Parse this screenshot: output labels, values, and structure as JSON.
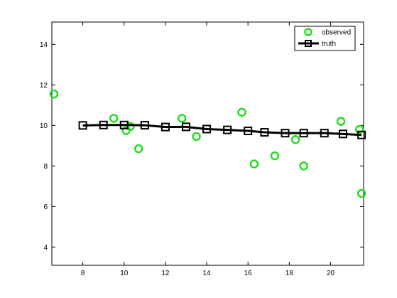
{
  "chart_data": {
    "type": "line",
    "title": "",
    "xlabel": "",
    "ylabel": "",
    "xlim": [
      6.5,
      21.6
    ],
    "ylim": [
      3.1,
      15.1
    ],
    "x_ticks": [
      8,
      10,
      12,
      14,
      16,
      18,
      20
    ],
    "y_ticks": [
      4,
      6,
      8,
      10,
      12,
      14
    ],
    "grid": false,
    "legend_placement": "top-right",
    "series": [
      {
        "name": "observed",
        "style": "markers",
        "marker": "circle",
        "color": "#22dd22",
        "points": [
          [
            6.6,
            11.55
          ],
          [
            9.5,
            10.35
          ],
          [
            10.1,
            9.75
          ],
          [
            10.3,
            9.95
          ],
          [
            10.7,
            8.85
          ],
          [
            12.8,
            10.35
          ],
          [
            13.5,
            9.45
          ],
          [
            15.7,
            10.65
          ],
          [
            16.3,
            8.1
          ],
          [
            17.3,
            8.5
          ],
          [
            18.3,
            9.3
          ],
          [
            18.7,
            8.0
          ],
          [
            20.5,
            10.2
          ],
          [
            21.4,
            9.8
          ],
          [
            21.5,
            6.65
          ]
        ]
      },
      {
        "name": "truth",
        "style": "line-markers",
        "marker": "square",
        "color": "#000000",
        "points": [
          [
            8,
            10.0
          ],
          [
            9,
            10.02
          ],
          [
            10,
            10.02
          ],
          [
            11,
            10.01
          ],
          [
            12,
            9.92
          ],
          [
            13,
            9.93
          ],
          [
            14,
            9.82
          ],
          [
            15,
            9.78
          ],
          [
            16,
            9.73
          ],
          [
            16.8,
            9.66
          ],
          [
            17.8,
            9.62
          ],
          [
            18.7,
            9.62
          ],
          [
            19.7,
            9.62
          ],
          [
            20.6,
            9.58
          ],
          [
            21.5,
            9.53
          ]
        ]
      }
    ]
  }
}
